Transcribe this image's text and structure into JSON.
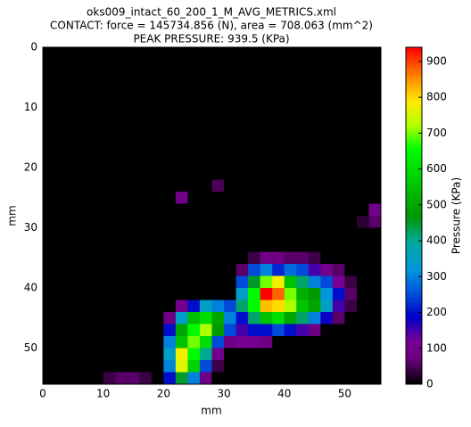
{
  "chart_data": {
    "type": "heatmap",
    "title": [
      "oks009_intact_60_200_1_M_AVG_METRICS.xml",
      "CONTACT: force = 145734.856 (N), area = 708.063 (mm^2)",
      "PEAK PRESSURE: 939.5 (KPa)"
    ],
    "xlabel": "mm",
    "ylabel": "mm",
    "xlim": [
      0,
      56
    ],
    "ylim": [
      56,
      0
    ],
    "xticks": [
      0,
      10,
      20,
      30,
      40,
      50
    ],
    "yticks": [
      0,
      10,
      20,
      30,
      40,
      50
    ],
    "colorbar_label": "Pressure (KPa)",
    "clim": [
      0,
      939.5
    ],
    "cticks": [
      0,
      100,
      200,
      300,
      400,
      500,
      600,
      700,
      800,
      900
    ],
    "z": [
      [
        0,
        0,
        0,
        0,
        0,
        0,
        0,
        0,
        0,
        0,
        0,
        0,
        0,
        0,
        0,
        0,
        0,
        0,
        0,
        0,
        0,
        0,
        0,
        0,
        0,
        0,
        0,
        0
      ],
      [
        0,
        0,
        0,
        0,
        0,
        0,
        0,
        0,
        0,
        0,
        0,
        0,
        0,
        0,
        0,
        0,
        0,
        0,
        0,
        0,
        0,
        0,
        0,
        0,
        0,
        0,
        0,
        0
      ],
      [
        0,
        0,
        0,
        0,
        0,
        0,
        0,
        0,
        0,
        0,
        0,
        0,
        0,
        0,
        0,
        0,
        0,
        0,
        0,
        0,
        0,
        0,
        0,
        0,
        0,
        0,
        0,
        0
      ],
      [
        0,
        0,
        0,
        0,
        0,
        0,
        0,
        0,
        0,
        0,
        0,
        0,
        0,
        0,
        0,
        0,
        0,
        0,
        0,
        0,
        0,
        0,
        0,
        0,
        0,
        0,
        0,
        0
      ],
      [
        0,
        0,
        0,
        0,
        0,
        0,
        0,
        0,
        0,
        0,
        0,
        0,
        0,
        0,
        0,
        0,
        0,
        0,
        0,
        0,
        0,
        0,
        0,
        0,
        0,
        0,
        0,
        0
      ],
      [
        0,
        0,
        0,
        0,
        0,
        0,
        0,
        0,
        0,
        0,
        0,
        0,
        0,
        0,
        0,
        0,
        0,
        0,
        0,
        0,
        0,
        0,
        0,
        0,
        0,
        0,
        0,
        0
      ],
      [
        0,
        0,
        0,
        0,
        0,
        0,
        0,
        0,
        0,
        0,
        0,
        0,
        0,
        0,
        0,
        0,
        0,
        0,
        0,
        0,
        0,
        0,
        0,
        0,
        0,
        0,
        0,
        0
      ],
      [
        0,
        0,
        0,
        0,
        0,
        0,
        0,
        0,
        0,
        0,
        0,
        0,
        0,
        0,
        0,
        0,
        0,
        0,
        0,
        0,
        0,
        0,
        0,
        0,
        0,
        0,
        0,
        0
      ],
      [
        0,
        0,
        0,
        0,
        0,
        0,
        0,
        0,
        0,
        0,
        0,
        0,
        0,
        0,
        0,
        0,
        0,
        0,
        0,
        0,
        0,
        0,
        0,
        0,
        0,
        0,
        0,
        0
      ],
      [
        0,
        0,
        0,
        0,
        0,
        0,
        0,
        0,
        0,
        0,
        0,
        0,
        0,
        0,
        0,
        0,
        0,
        0,
        0,
        0,
        0,
        0,
        0,
        0,
        0,
        0,
        0,
        0
      ],
      [
        0,
        0,
        0,
        0,
        0,
        0,
        0,
        0,
        0,
        0,
        0,
        0,
        0,
        0,
        0,
        0,
        0,
        0,
        0,
        0,
        0,
        0,
        0,
        0,
        0,
        0,
        0,
        0
      ],
      [
        0,
        0,
        0,
        0,
        0,
        0,
        0,
        0,
        0,
        0,
        0,
        0,
        0,
        0,
        50,
        0,
        0,
        0,
        0,
        0,
        0,
        0,
        0,
        0,
        0,
        0,
        0,
        0
      ],
      [
        0,
        0,
        0,
        0,
        0,
        0,
        0,
        0,
        0,
        0,
        0,
        90,
        0,
        0,
        0,
        0,
        0,
        0,
        0,
        0,
        0,
        0,
        0,
        0,
        0,
        0,
        0,
        0
      ],
      [
        0,
        0,
        0,
        0,
        0,
        0,
        0,
        0,
        0,
        0,
        0,
        0,
        0,
        0,
        0,
        0,
        0,
        0,
        0,
        0,
        0,
        0,
        0,
        0,
        0,
        0,
        0,
        90
      ],
      [
        0,
        0,
        0,
        0,
        0,
        0,
        0,
        0,
        0,
        0,
        0,
        0,
        0,
        0,
        0,
        0,
        0,
        0,
        0,
        0,
        0,
        0,
        0,
        0,
        0,
        0,
        30,
        60
      ],
      [
        0,
        0,
        0,
        0,
        0,
        0,
        0,
        0,
        0,
        0,
        0,
        0,
        0,
        0,
        0,
        0,
        0,
        0,
        0,
        0,
        0,
        0,
        0,
        0,
        0,
        0,
        0,
        0
      ],
      [
        0,
        0,
        0,
        0,
        0,
        0,
        0,
        0,
        0,
        0,
        0,
        0,
        0,
        0,
        0,
        0,
        0,
        0,
        0,
        0,
        0,
        0,
        0,
        0,
        0,
        0,
        0,
        0
      ],
      [
        0,
        0,
        0,
        0,
        0,
        0,
        0,
        0,
        0,
        0,
        0,
        0,
        0,
        0,
        0,
        0,
        0,
        40,
        80,
        80,
        60,
        60,
        40,
        0,
        0,
        0,
        0,
        0
      ],
      [
        0,
        0,
        0,
        0,
        0,
        0,
        0,
        0,
        0,
        0,
        0,
        0,
        0,
        0,
        0,
        0,
        60,
        250,
        300,
        220,
        280,
        250,
        150,
        100,
        60,
        0,
        0,
        0
      ],
      [
        0,
        0,
        0,
        0,
        0,
        0,
        0,
        0,
        0,
        0,
        0,
        0,
        0,
        0,
        0,
        0,
        250,
        450,
        700,
        780,
        550,
        420,
        300,
        250,
        120,
        40,
        0,
        0
      ],
      [
        0,
        0,
        0,
        0,
        0,
        0,
        0,
        0,
        0,
        0,
        0,
        0,
        0,
        0,
        0,
        0,
        350,
        650,
        939.5,
        880,
        700,
        520,
        480,
        320,
        200,
        60,
        0,
        0
      ],
      [
        0,
        0,
        0,
        0,
        0,
        0,
        0,
        0,
        0,
        0,
        0,
        100,
        200,
        350,
        300,
        250,
        420,
        650,
        820,
        800,
        720,
        560,
        500,
        350,
        150,
        40,
        0,
        0
      ],
      [
        0,
        0,
        0,
        0,
        0,
        0,
        0,
        0,
        0,
        0,
        80,
        350,
        550,
        600,
        500,
        300,
        200,
        420,
        550,
        600,
        500,
        420,
        300,
        180,
        60,
        0,
        0,
        0
      ],
      [
        0,
        0,
        0,
        0,
        0,
        0,
        0,
        0,
        0,
        0,
        200,
        500,
        650,
        720,
        480,
        250,
        150,
        200,
        200,
        250,
        200,
        150,
        80,
        0,
        0,
        0,
        0,
        0
      ],
      [
        0,
        0,
        0,
        0,
        0,
        0,
        0,
        0,
        0,
        0,
        300,
        550,
        700,
        600,
        250,
        80,
        120,
        100,
        80,
        0,
        0,
        0,
        0,
        0,
        0,
        0,
        0,
        0
      ],
      [
        0,
        0,
        0,
        0,
        0,
        0,
        0,
        0,
        0,
        0,
        350,
        780,
        650,
        400,
        100,
        0,
        0,
        0,
        0,
        0,
        0,
        0,
        0,
        0,
        0,
        0,
        0,
        0
      ],
      [
        0,
        0,
        0,
        0,
        0,
        0,
        0,
        0,
        0,
        0,
        300,
        760,
        580,
        250,
        40,
        0,
        0,
        0,
        0,
        0,
        0,
        0,
        0,
        0,
        0,
        0,
        0,
        0
      ],
      [
        0,
        0,
        0,
        0,
        0,
        40,
        60,
        60,
        40,
        0,
        200,
        450,
        300,
        80,
        0,
        0,
        0,
        0,
        0,
        0,
        0,
        0,
        0,
        0,
        0,
        0,
        0,
        0
      ]
    ]
  }
}
